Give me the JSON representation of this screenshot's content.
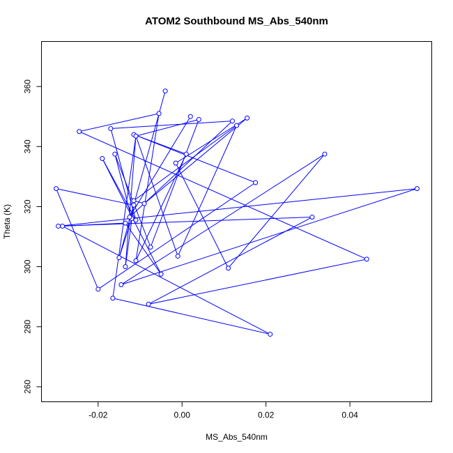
{
  "chart_data": {
    "type": "line",
    "title": "ATOM2 Southbound MS_Abs_540nm",
    "xlabel": "MS_Abs_540nm",
    "ylabel": "Theta (K)",
    "xlim": [
      -0.0335,
      0.0595
    ],
    "ylim": [
      255,
      375
    ],
    "xticks": [
      -0.02,
      0.0,
      0.02,
      0.04
    ],
    "xtick_labels": [
      "-0.02",
      "0.00",
      "0.02",
      "0.04"
    ],
    "yticks": [
      260,
      280,
      300,
      320,
      340,
      360
    ],
    "ytick_labels": [
      "260",
      "280",
      "300",
      "320",
      "340",
      "360"
    ],
    "grid": false,
    "series": [
      {
        "color": "#0000ff",
        "marker": "open-circle",
        "connected": true,
        "x": [
          -0.004,
          -0.015,
          -0.012,
          -0.016,
          -0.0075,
          0.004,
          -0.011,
          -0.001,
          0.013,
          -0.0115,
          -0.009,
          0.0155,
          -0.0015,
          0.011,
          0.034,
          -0.0145,
          0.056,
          -0.0295,
          0.031,
          -0.008,
          0.044,
          -0.0245,
          -0.0055,
          -0.011,
          0.001,
          -0.0115,
          0.0175,
          -0.02,
          -0.03,
          -0.0115,
          -0.0135,
          -0.011,
          -0.0165,
          0.021,
          -0.0285,
          -0.0135,
          -0.005,
          -0.019,
          -0.011,
          -0.017,
          0.012,
          -0.0125,
          0.002
        ],
        "y": [
          358.5,
          303.0,
          316.0,
          337.5,
          306.5,
          349.0,
          343.5,
          303.5,
          347.0,
          322.0,
          321.0,
          349.5,
          334.5,
          299.5,
          337.5,
          294.0,
          326.0,
          313.5,
          316.5,
          287.5,
          302.5,
          345.0,
          351.0,
          302.0,
          337.5,
          344.0,
          328.0,
          292.5,
          326.0,
          320.5,
          300.0,
          343.5,
          289.5,
          277.5,
          313.5,
          314.5,
          297.5,
          336.0,
          315.5,
          346.0,
          348.5,
          316.5,
          350.0
        ]
      }
    ]
  }
}
